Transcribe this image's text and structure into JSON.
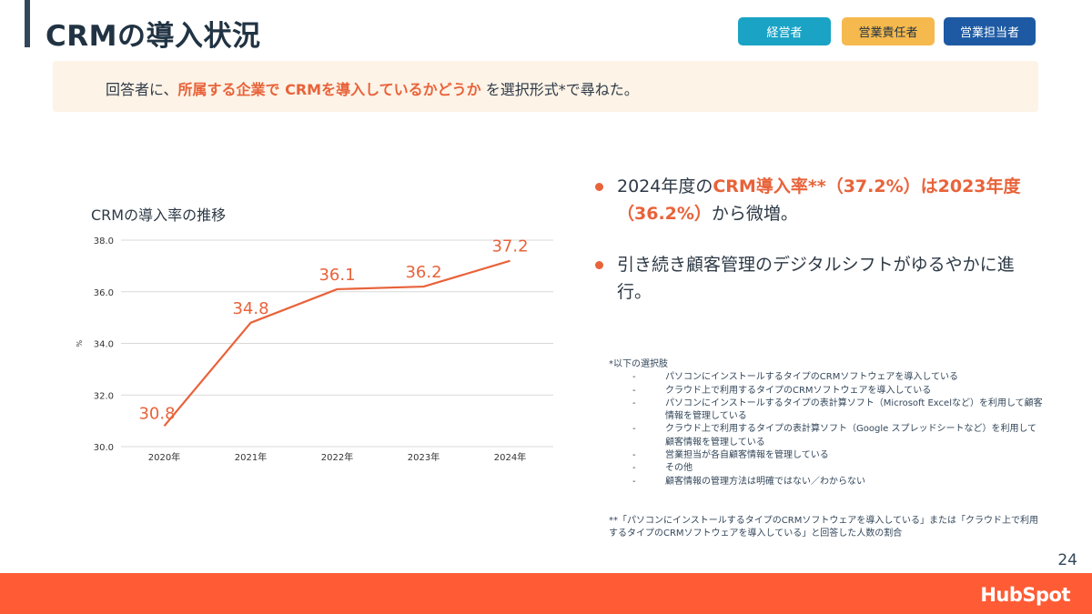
{
  "header": {
    "title": "CRMの導入状況",
    "badges": [
      "経営者",
      "営業責任者",
      "営業担当者"
    ]
  },
  "question": {
    "prefix": "回答者に、",
    "highlight": "所属する企業で CRMを導入しているかどうか",
    "suffix": " を選択形式*で尋ねた。"
  },
  "bullets": [
    {
      "parts": [
        {
          "text": "2024年度の",
          "accent": false
        },
        {
          "text": "CRM導入率**（37.2%）は2023年度（36.2%）",
          "accent": true
        },
        {
          "text": "から微増。",
          "accent": false
        }
      ]
    },
    {
      "parts": [
        {
          "text": "引き続き顧客管理のデジタルシフトがゆるやかに進行。",
          "accent": false
        }
      ]
    }
  ],
  "notes": {
    "heading": "*以下の選択肢",
    "options": [
      "パソコンにインストールするタイプのCRMソフトウェアを導入している",
      "クラウド上で利用するタイプのCRMソフトウェアを導入している",
      "パソコンにインストールするタイプの表計算ソフト（Microsoft Excelなど）を利用して顧客情報を管理している",
      "クラウド上で利用するタイプの表計算ソフト（Google スプレッドシートなど）を利用して顧客情報を管理している",
      "営業担当が各自顧客情報を管理している",
      "その他",
      "顧客情報の管理方法は明確ではない／わからない"
    ],
    "footnote": "**「パソコンにインストールするタイプのCRMソフトウェアを導入している」または「クラウド上で利用するタイプのCRMソフトウェアを導入している」と回答した人数の割合"
  },
  "page_number": "24",
  "logo_text": "HubSpot",
  "colors": {
    "accent": "#e8633a",
    "footer": "#ff5c35",
    "badge_exec": "#1aa3c5",
    "badge_mgr": "#f5b94e",
    "badge_staff": "#1e5aa3"
  },
  "chart_data": {
    "type": "line",
    "title": "CRMの導入率の推移",
    "ylabel": "%",
    "xlabel": "",
    "categories": [
      "2020年",
      "2021年",
      "2022年",
      "2023年",
      "2024年"
    ],
    "series": [
      {
        "values": [
          30.8,
          34.8,
          36.1,
          36.2,
          37.2
        ]
      }
    ],
    "ylim": [
      30.0,
      38.0
    ],
    "yticks": [
      "30.0",
      "32.0",
      "34.0",
      "36.0",
      "38.0"
    ],
    "data_labels": [
      "30.8",
      "34.8",
      "36.1",
      "36.2",
      "37.2"
    ],
    "grid": true,
    "legend": "none"
  }
}
